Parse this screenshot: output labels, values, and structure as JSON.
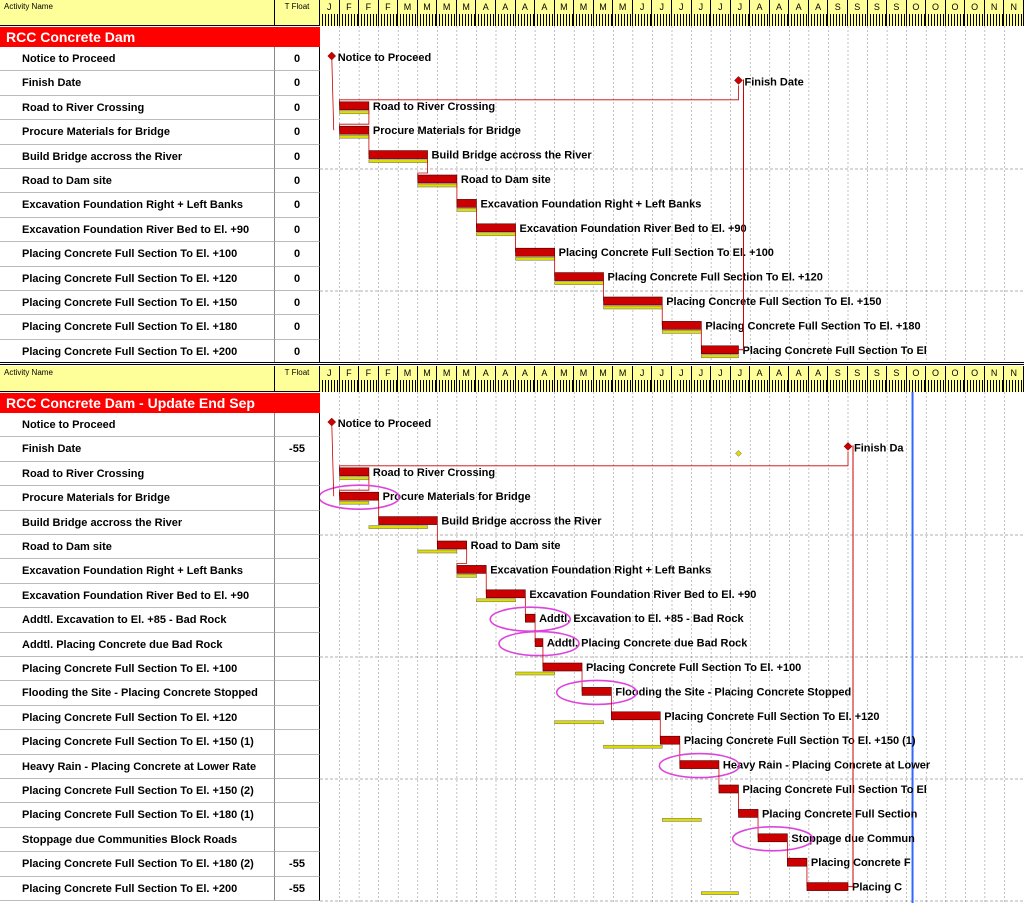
{
  "header": {
    "activity_name": "Activity Name",
    "total_float": "T Float"
  },
  "months": [
    "J",
    "F",
    "F",
    "F",
    "M",
    "M",
    "M",
    "M",
    "A",
    "A",
    "A",
    "A",
    "M",
    "M",
    "M",
    "M",
    "J",
    "J",
    "J",
    "J",
    "J",
    "J",
    "A",
    "A",
    "A",
    "A",
    "S",
    "S",
    "S",
    "S",
    "O",
    "O",
    "O",
    "O",
    "N",
    "N"
  ],
  "colors": {
    "bar": "#cc0000",
    "baseline": "#dddd00",
    "title": "#ff0000",
    "header": "#ffff99",
    "logic": "#cc0000",
    "status_line": "#3366ff",
    "ellipse": "#dd44dd"
  },
  "panel1": {
    "title": "RCC Concrete Dam",
    "activities": [
      {
        "name": "Notice to Proceed",
        "float": "0",
        "start": 0.6,
        "end": 0.6,
        "milestone": true,
        "label": "Notice to Proceed"
      },
      {
        "name": "Finish Date",
        "float": "0",
        "start": 21.4,
        "end": 21.4,
        "milestone": true,
        "label": "Finish Date",
        "base_ms": 21.4
      },
      {
        "name": "Road to River Crossing",
        "float": "0",
        "start": 1.0,
        "end": 2.5,
        "label": "Road to River Crossing",
        "bs": 1.0,
        "be": 2.5
      },
      {
        "name": "Procure Materials for Bridge",
        "float": "0",
        "start": 1.0,
        "end": 2.5,
        "label": "Procure Materials for Bridge",
        "bs": 1.0,
        "be": 2.5
      },
      {
        "name": "Build Bridge accross the River",
        "float": "0",
        "start": 2.5,
        "end": 5.5,
        "label": "Build Bridge accross the River",
        "bs": 2.5,
        "be": 5.5
      },
      {
        "name": "Road to Dam site",
        "float": "0",
        "start": 5.0,
        "end": 7.0,
        "label": "Road to Dam site",
        "bs": 5.0,
        "be": 7.0
      },
      {
        "name": "Excavation Foundation Right + Left Banks",
        "float": "0",
        "start": 7.0,
        "end": 8.0,
        "label": "Excavation Foundation Right + Left Banks",
        "bs": 7.0,
        "be": 8.0
      },
      {
        "name": "Excavation Foundation River Bed to El. +90",
        "float": "0",
        "start": 8.0,
        "end": 10.0,
        "label": "Excavation Foundation River Bed to El. +90",
        "bs": 8.0,
        "be": 10.0
      },
      {
        "name": "Placing Concrete Full Section To El. +100",
        "float": "0",
        "start": 10.0,
        "end": 12.0,
        "label": "Placing Concrete Full Section To El. +100",
        "bs": 10.0,
        "be": 12.0
      },
      {
        "name": "Placing Concrete Full Section To El. +120",
        "float": "0",
        "start": 12.0,
        "end": 14.5,
        "label": "Placing Concrete Full Section To El. +120",
        "bs": 12.0,
        "be": 14.5
      },
      {
        "name": "Placing Concrete Full Section To El. +150",
        "float": "0",
        "start": 14.5,
        "end": 17.5,
        "label": "Placing Concrete Full Section To El. +150",
        "bs": 14.5,
        "be": 17.5
      },
      {
        "name": "Placing Concrete Full Section To El. +180",
        "float": "0",
        "start": 17.5,
        "end": 19.5,
        "label": "Placing Concrete Full Section To El. +180",
        "bs": 17.5,
        "be": 19.5
      },
      {
        "name": "Placing Concrete Full Section To El. +200",
        "float": "0",
        "start": 19.5,
        "end": 21.4,
        "label": "Placing Concrete Full Section To El",
        "bs": 19.5,
        "be": 21.4
      }
    ]
  },
  "panel2": {
    "title": "RCC Concrete Dam - Update End Sep",
    "activities": [
      {
        "name": "Notice to Proceed",
        "float": "",
        "start": 0.6,
        "end": 0.6,
        "milestone": true,
        "label": "Notice to Proceed"
      },
      {
        "name": "Finish Date",
        "float": "-55",
        "start": 27.0,
        "end": 27.0,
        "milestone": true,
        "label": "Finish Da",
        "base_ms": 21.4
      },
      {
        "name": "Road to River Crossing",
        "float": "",
        "start": 1.0,
        "end": 2.5,
        "label": "Road to River Crossing",
        "bs": 1.0,
        "be": 2.5
      },
      {
        "name": "Procure Materials for Bridge",
        "float": "",
        "start": 1.0,
        "end": 3.0,
        "label": "Procure Materials for Bridge",
        "bs": 1.0,
        "be": 2.5,
        "circled": true
      },
      {
        "name": "Build Bridge accross the River",
        "float": "",
        "start": 3.0,
        "end": 6.0,
        "label": "Build Bridge accross the River",
        "bs": 2.5,
        "be": 5.5
      },
      {
        "name": "Road to Dam site",
        "float": "",
        "start": 6.0,
        "end": 7.5,
        "label": "Road to Dam site",
        "bs": 5.0,
        "be": 7.0
      },
      {
        "name": "Excavation Foundation Right + Left Banks",
        "float": "",
        "start": 7.0,
        "end": 8.5,
        "label": "Excavation Foundation Right + Left Banks",
        "bs": 7.0,
        "be": 8.0
      },
      {
        "name": "Excavation Foundation River Bed to El. +90",
        "float": "",
        "start": 8.5,
        "end": 10.5,
        "label": "Excavation Foundation River Bed to El. +90",
        "bs": 8.0,
        "be": 10.0
      },
      {
        "name": "Addtl. Excavation to El. +85 - Bad Rock",
        "float": "",
        "start": 10.5,
        "end": 11.0,
        "label": "Addtl. Excavation to El. +85 - Bad Rock",
        "circled": true
      },
      {
        "name": "Addtl. Placing Concrete due Bad Rock",
        "float": "",
        "start": 11.0,
        "end": 11.4,
        "label": "Addtl. Placing Concrete due Bad Rock",
        "circled": true
      },
      {
        "name": "Placing Concrete Full Section To El. +100",
        "float": "",
        "start": 11.4,
        "end": 13.4,
        "label": "Placing Concrete Full Section To El. +100",
        "bs": 10.0,
        "be": 12.0
      },
      {
        "name": "Flooding the Site - Placing Concrete Stopped",
        "float": "",
        "start": 13.4,
        "end": 14.9,
        "label": "Flooding the Site - Placing Concrete Stopped",
        "circled": true
      },
      {
        "name": "Placing Concrete Full Section To El. +120",
        "float": "",
        "start": 14.9,
        "end": 17.4,
        "label": "Placing Concrete Full Section To El. +120",
        "bs": 12.0,
        "be": 14.5
      },
      {
        "name": "Placing Concrete Full Section To El. +150 (1)",
        "float": "",
        "start": 17.4,
        "end": 18.4,
        "label": "Placing Concrete Full Section To El. +150 (1)",
        "bs": 14.5,
        "be": 17.5
      },
      {
        "name": "Heavy Rain - Placing Concrete at Lower Rate",
        "float": "",
        "start": 18.4,
        "end": 20.4,
        "label": "Heavy Rain - Placing Concrete at Lower",
        "circled": true
      },
      {
        "name": "Placing Concrete Full Section To El. +150 (2)",
        "float": "",
        "start": 20.4,
        "end": 21.4,
        "label": "Placing Concrete Full Section To El"
      },
      {
        "name": "Placing Concrete Full Section To El. +180 (1)",
        "float": "",
        "start": 21.4,
        "end": 22.4,
        "label": "Placing Concrete Full Section",
        "bs": 17.5,
        "be": 19.5
      },
      {
        "name": "Stoppage due Communities Block Roads",
        "float": "",
        "start": 22.4,
        "end": 23.9,
        "label": "Stoppage due Commun",
        "circled": true
      },
      {
        "name": "Placing Concrete Full Section To El. +180 (2)",
        "float": "-55",
        "start": 23.9,
        "end": 24.9,
        "label": "Placing Concrete F"
      },
      {
        "name": "Placing Concrete Full Section To El. +200",
        "float": "-55",
        "start": 24.9,
        "end": 27.0,
        "label": "Placing C",
        "bs": 19.5,
        "be": 21.4
      }
    ]
  }
}
